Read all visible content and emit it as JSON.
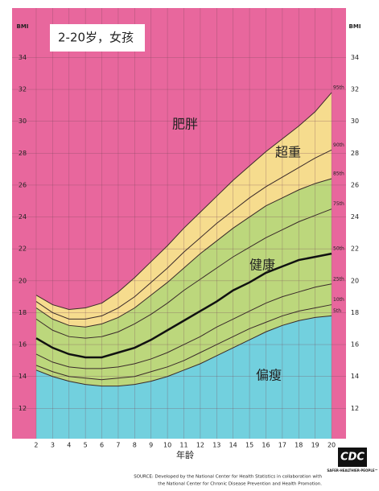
{
  "title": "2-20岁，女孩",
  "chart_data": {
    "type": "line",
    "y_axis_label": "BMI",
    "x_axis_label": "年龄",
    "x": [
      2,
      3,
      4,
      5,
      6,
      7,
      8,
      9,
      10,
      11,
      12,
      13,
      14,
      15,
      16,
      17,
      18,
      19,
      20
    ],
    "xlim": [
      0.53,
      20.88
    ],
    "xticks": [
      2,
      3,
      4,
      5,
      6,
      7,
      8,
      9,
      10,
      11,
      12,
      13,
      14,
      15,
      16,
      17,
      18,
      19,
      20
    ],
    "ylim": [
      10.1,
      37.1
    ],
    "yticks": [
      12,
      14,
      16,
      18,
      20,
      22,
      24,
      26,
      28,
      30,
      32,
      34
    ],
    "grid": true,
    "background_color": "#e8679d",
    "series": [
      {
        "name": "95th",
        "color": "#3a2a2a",
        "band_color": "#f6dc8e",
        "values": [
          19.1,
          18.5,
          18.2,
          18.3,
          18.6,
          19.3,
          20.2,
          21.2,
          22.2,
          23.3,
          24.3,
          25.3,
          26.3,
          27.2,
          28.1,
          28.9,
          29.7,
          30.6,
          31.8
        ]
      },
      {
        "name": "90th",
        "color": "#3a2a2a",
        "values": [
          18.7,
          18.0,
          17.6,
          17.6,
          17.8,
          18.3,
          19.0,
          19.9,
          20.8,
          21.8,
          22.7,
          23.6,
          24.4,
          25.2,
          25.9,
          26.5,
          27.1,
          27.7,
          28.2
        ]
      },
      {
        "name": "85th",
        "color": "#3a2a2a",
        "band_color": "#bcd77c",
        "values": [
          18.3,
          17.6,
          17.2,
          17.1,
          17.3,
          17.7,
          18.3,
          19.1,
          19.9,
          20.8,
          21.7,
          22.5,
          23.3,
          24.0,
          24.7,
          25.2,
          25.7,
          26.1,
          26.4
        ]
      },
      {
        "name": "75th",
        "color": "#3a2a2a",
        "values": [
          17.6,
          16.9,
          16.5,
          16.4,
          16.5,
          16.8,
          17.3,
          17.9,
          18.6,
          19.4,
          20.1,
          20.8,
          21.5,
          22.1,
          22.7,
          23.2,
          23.7,
          24.1,
          24.5
        ]
      },
      {
        "name": "50th",
        "color": "#111111",
        "width": 2.5,
        "values": [
          16.4,
          15.8,
          15.4,
          15.2,
          15.2,
          15.5,
          15.8,
          16.3,
          16.9,
          17.5,
          18.1,
          18.7,
          19.4,
          19.9,
          20.5,
          20.9,
          21.3,
          21.5,
          21.7
        ]
      },
      {
        "name": "25th",
        "color": "#3a2a2a",
        "values": [
          15.4,
          14.9,
          14.6,
          14.5,
          14.5,
          14.6,
          14.8,
          15.1,
          15.5,
          16.0,
          16.5,
          17.1,
          17.6,
          18.1,
          18.6,
          19.0,
          19.3,
          19.6,
          19.8
        ]
      },
      {
        "name": "10th",
        "color": "#3a2a2a",
        "values": [
          14.7,
          14.3,
          14.0,
          13.9,
          13.8,
          13.9,
          14.0,
          14.3,
          14.6,
          15.0,
          15.5,
          16.0,
          16.5,
          17.0,
          17.4,
          17.8,
          18.1,
          18.3,
          18.5
        ]
      },
      {
        "name": "5th",
        "color": "#3a2a2a",
        "band_color": "#72d0de",
        "values": [
          14.4,
          14.0,
          13.7,
          13.5,
          13.4,
          13.4,
          13.5,
          13.7,
          14.0,
          14.4,
          14.8,
          15.3,
          15.8,
          16.3,
          16.8,
          17.2,
          17.5,
          17.7,
          17.8
        ]
      }
    ],
    "annotations": [
      "肥胖",
      "超重",
      "健康",
      "偏瘦"
    ]
  },
  "source": [
    "SOURCE: Developed by the National Center for Health Statistics in collaboration with",
    "the National Center for Chronic Disease Prevention and Health Promotion."
  ],
  "logo": {
    "name": "CDC",
    "tagline": "SAFER·HEALTHIER·PEOPLE™"
  }
}
